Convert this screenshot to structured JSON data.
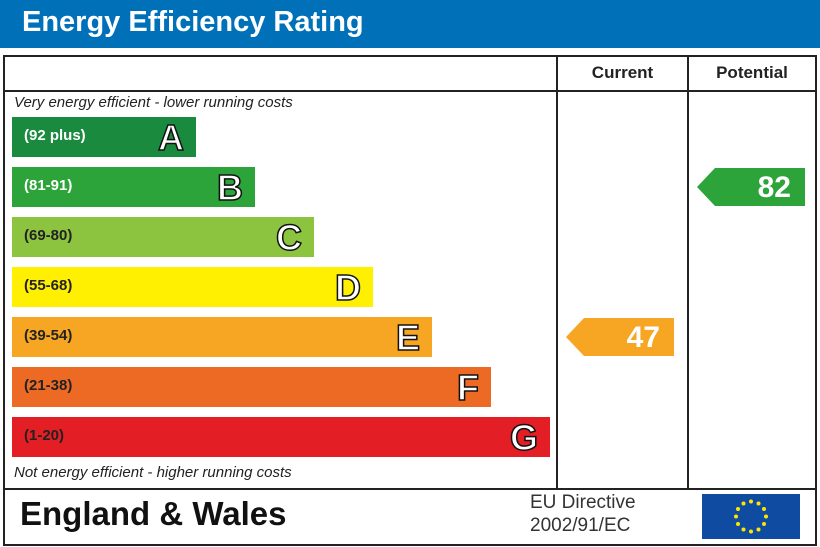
{
  "title": "Energy Efficiency Rating",
  "chart_data": {
    "type": "bar",
    "columns": [
      "Current",
      "Potential"
    ],
    "top_note": "Very energy efficient - lower running costs",
    "bottom_note": "Not energy efficient - higher running costs",
    "bands": [
      {
        "letter": "A",
        "range": "(92 plus)",
        "color": "#1a8a3e",
        "text_color": "#ffffff"
      },
      {
        "letter": "B",
        "range": "(81-91)",
        "color": "#2ca43a",
        "text_color": "#ffffff"
      },
      {
        "letter": "C",
        "range": "(69-80)",
        "color": "#8cc43f",
        "text_color": "#222222"
      },
      {
        "letter": "D",
        "range": "(55-68)",
        "color": "#ffef00",
        "text_color": "#222222"
      },
      {
        "letter": "E",
        "range": "(39-54)",
        "color": "#f6a623",
        "text_color": "#222222"
      },
      {
        "letter": "F",
        "range": "(21-38)",
        "color": "#ec6a24",
        "text_color": "#222222"
      },
      {
        "letter": "G",
        "range": "(1-20)",
        "color": "#e31e24",
        "text_color": "#222222"
      }
    ],
    "current": {
      "value": 47,
      "band": "E",
      "color": "#f6a623"
    },
    "potential": {
      "value": 82,
      "band": "B",
      "color": "#2ca43a"
    }
  },
  "footer": {
    "region": "England & Wales",
    "directive_line1": "EU Directive",
    "directive_line2": "2002/91/EC"
  }
}
